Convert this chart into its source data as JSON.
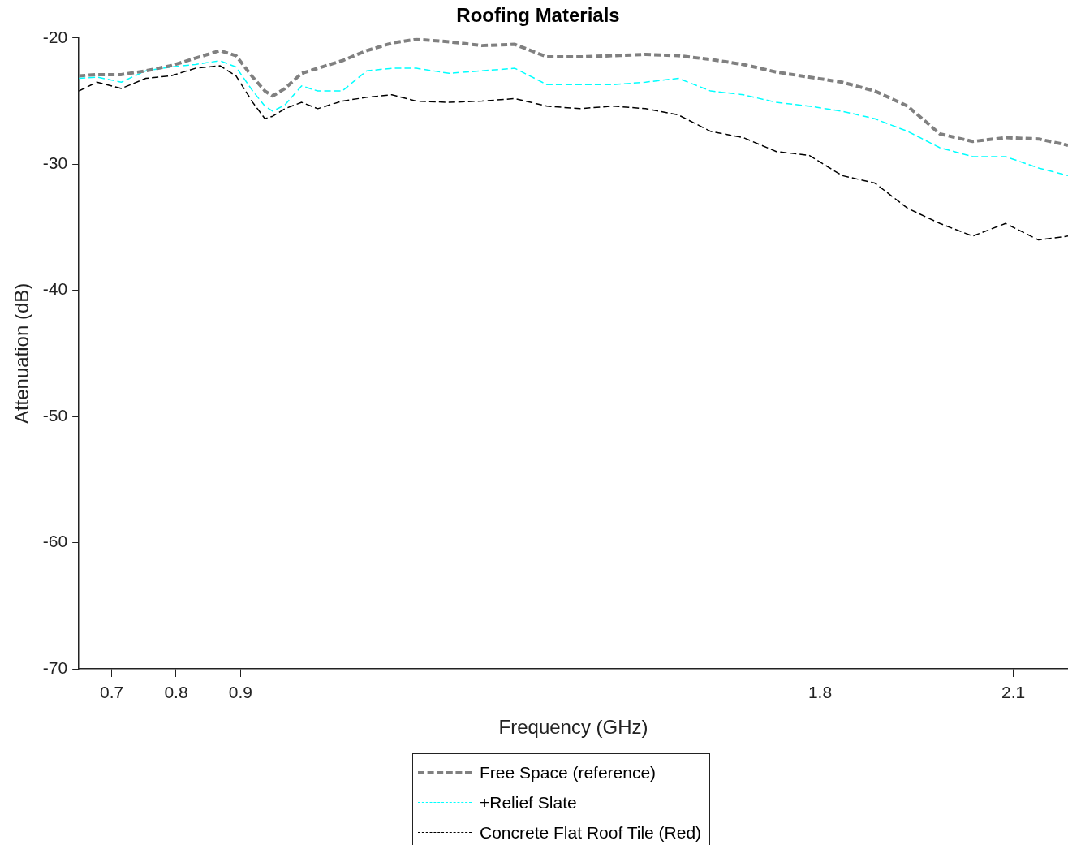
{
  "chart_data": {
    "type": "line",
    "title": "Roofing Materials",
    "xlabel": "Frequency (GHz)",
    "ylabel": "Attenuation (dB)",
    "x": [
      0.649,
      0.677,
      0.715,
      0.753,
      0.792,
      0.83,
      0.868,
      0.893,
      0.919,
      0.938,
      0.95,
      0.969,
      0.995,
      1.02,
      1.058,
      1.096,
      1.135,
      1.173,
      1.224,
      1.275,
      1.326,
      1.376,
      1.427,
      1.478,
      1.529,
      1.58,
      1.63,
      1.681,
      1.732,
      1.783,
      1.834,
      1.885,
      1.936,
      1.986,
      2.037,
      2.088,
      2.139,
      2.185
    ],
    "series": [
      {
        "name": "Free Space (reference)",
        "color": "#808080",
        "line_style": "dashed",
        "values": [
          -23.0,
          -22.9,
          -22.9,
          -22.6,
          -22.2,
          -21.6,
          -21.0,
          -21.4,
          -23.1,
          -24.2,
          -24.6,
          -24.0,
          -22.8,
          -22.4,
          -21.8,
          -21.0,
          -20.4,
          -20.1,
          -20.3,
          -20.6,
          -20.5,
          -21.5,
          -21.5,
          -21.4,
          -21.3,
          -21.4,
          -21.7,
          -22.1,
          -22.7,
          -23.1,
          -23.5,
          -24.2,
          -25.4,
          -27.6,
          -28.2,
          -27.9,
          -28.0,
          -28.5
        ]
      },
      {
        "name": "+Relief Slate",
        "color": "#00ffff",
        "line_style": "dashed",
        "values": [
          -23.2,
          -23.1,
          -23.5,
          -22.6,
          -22.3,
          -22.1,
          -21.8,
          -22.3,
          -24.2,
          -25.4,
          -25.8,
          -25.3,
          -23.8,
          -24.2,
          -24.2,
          -22.6,
          -22.4,
          -22.4,
          -22.8,
          -22.6,
          -22.4,
          -23.7,
          -23.7,
          -23.7,
          -23.5,
          -23.2,
          -24.2,
          -24.5,
          -25.1,
          -25.4,
          -25.8,
          -26.4,
          -27.4,
          -28.7,
          -29.4,
          -29.4,
          -30.3,
          -30.9
        ]
      },
      {
        "name": "Concrete Flat Roof Tile (Red)",
        "color": "#000000",
        "line_style": "dashed",
        "values": [
          -24.2,
          -23.5,
          -24.0,
          -23.2,
          -23.0,
          -22.4,
          -22.2,
          -23.0,
          -25.1,
          -26.4,
          -26.2,
          -25.6,
          -25.1,
          -25.6,
          -25.0,
          -24.7,
          -24.5,
          -25.0,
          -25.1,
          -25.0,
          -24.8,
          -25.4,
          -25.6,
          -25.4,
          -25.6,
          -26.1,
          -27.4,
          -27.9,
          -29.0,
          -29.3,
          -30.9,
          -31.5,
          -33.5,
          -34.7,
          -35.7,
          -34.7,
          -36.0,
          -35.7
        ]
      }
    ],
    "xlim": [
      0.649,
      2.185
    ],
    "xticks": [
      0.7,
      0.8,
      0.9,
      1.8,
      2.1
    ],
    "ylim": [
      -70,
      -20
    ],
    "yticks": [
      -70,
      -60,
      -50,
      -40,
      -30,
      -20
    ],
    "grid": false,
    "legend": "bottom",
    "marker": "none"
  }
}
